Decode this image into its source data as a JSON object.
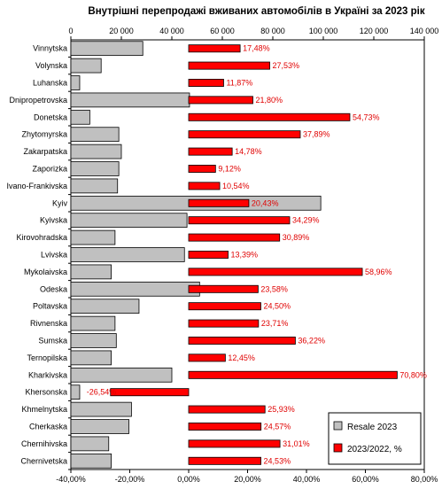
{
  "chart_data": {
    "type": "bar",
    "title": "Внутрішні  перепродажі вживаних автомобілів  в Україні за 2023 рік",
    "categories": [
      "Vinnytska",
      "Volynska",
      "Luhanska",
      "Dnipropetrovska",
      "Donetska",
      "Zhytomyrska",
      "Zakarpatska",
      "Zaporizka",
      "Ivano-Frankivska",
      "Kyiv",
      "Kyivska",
      "Kirovohradska",
      "Lvivska",
      "Mykolaivska",
      "Odeska",
      "Poltavska",
      "Rivnenska",
      "Sumska",
      "Ternopilska",
      "Kharkivska",
      "Khersonska",
      "Khmelnytska",
      "Cherkaska",
      "Chernihivska",
      "Chernivetska"
    ],
    "series": [
      {
        "name": "Resale 2023",
        "color": "#c0c0c0",
        "axis": "top",
        "values": [
          28500,
          12000,
          3500,
          47000,
          7500,
          19000,
          20000,
          19000,
          18500,
          99000,
          46000,
          17500,
          45000,
          16000,
          51000,
          27000,
          17500,
          18000,
          16000,
          40000,
          3500,
          24000,
          23000,
          15000,
          16000
        ]
      },
      {
        "name": "2023/2022, %",
        "color": "#ff0000",
        "axis": "bottom",
        "values": [
          17.48,
          27.53,
          11.87,
          21.8,
          54.73,
          37.89,
          14.78,
          9.12,
          10.54,
          20.43,
          34.29,
          30.89,
          13.39,
          58.96,
          23.58,
          24.5,
          23.71,
          36.22,
          12.45,
          70.8,
          -26.54,
          25.93,
          24.57,
          31.01,
          24.53
        ],
        "labels": [
          "17,48%",
          "27,53%",
          "11,87%",
          "21,80%",
          "54,73%",
          "37,89%",
          "14,78%",
          "9,12%",
          "10,54%",
          "20,43%",
          "34,29%",
          "30,89%",
          "13,39%",
          "58,96%",
          "23,58%",
          "24,50%",
          "23,71%",
          "36,22%",
          "12,45%",
          "70,80%",
          "-26,54%",
          "25,93%",
          "24,57%",
          "31,01%",
          "24,53%"
        ]
      }
    ],
    "x_top": {
      "min": 0,
      "max": 140000,
      "ticks": [
        "0",
        "20 000",
        "40 000",
        "60 000",
        "80 000",
        "100 000",
        "120 000",
        "140 000"
      ]
    },
    "x_bottom": {
      "min": -40,
      "max": 80,
      "ticks": [
        "-40,00%",
        "-20,00%",
        "0,00%",
        "20,00%",
        "40,00%",
        "60,00%",
        "80,00%"
      ]
    },
    "legend": {
      "placement": "bottom-right",
      "items": [
        "Resale 2023",
        "2023/2022, %"
      ]
    },
    "grid": false
  }
}
